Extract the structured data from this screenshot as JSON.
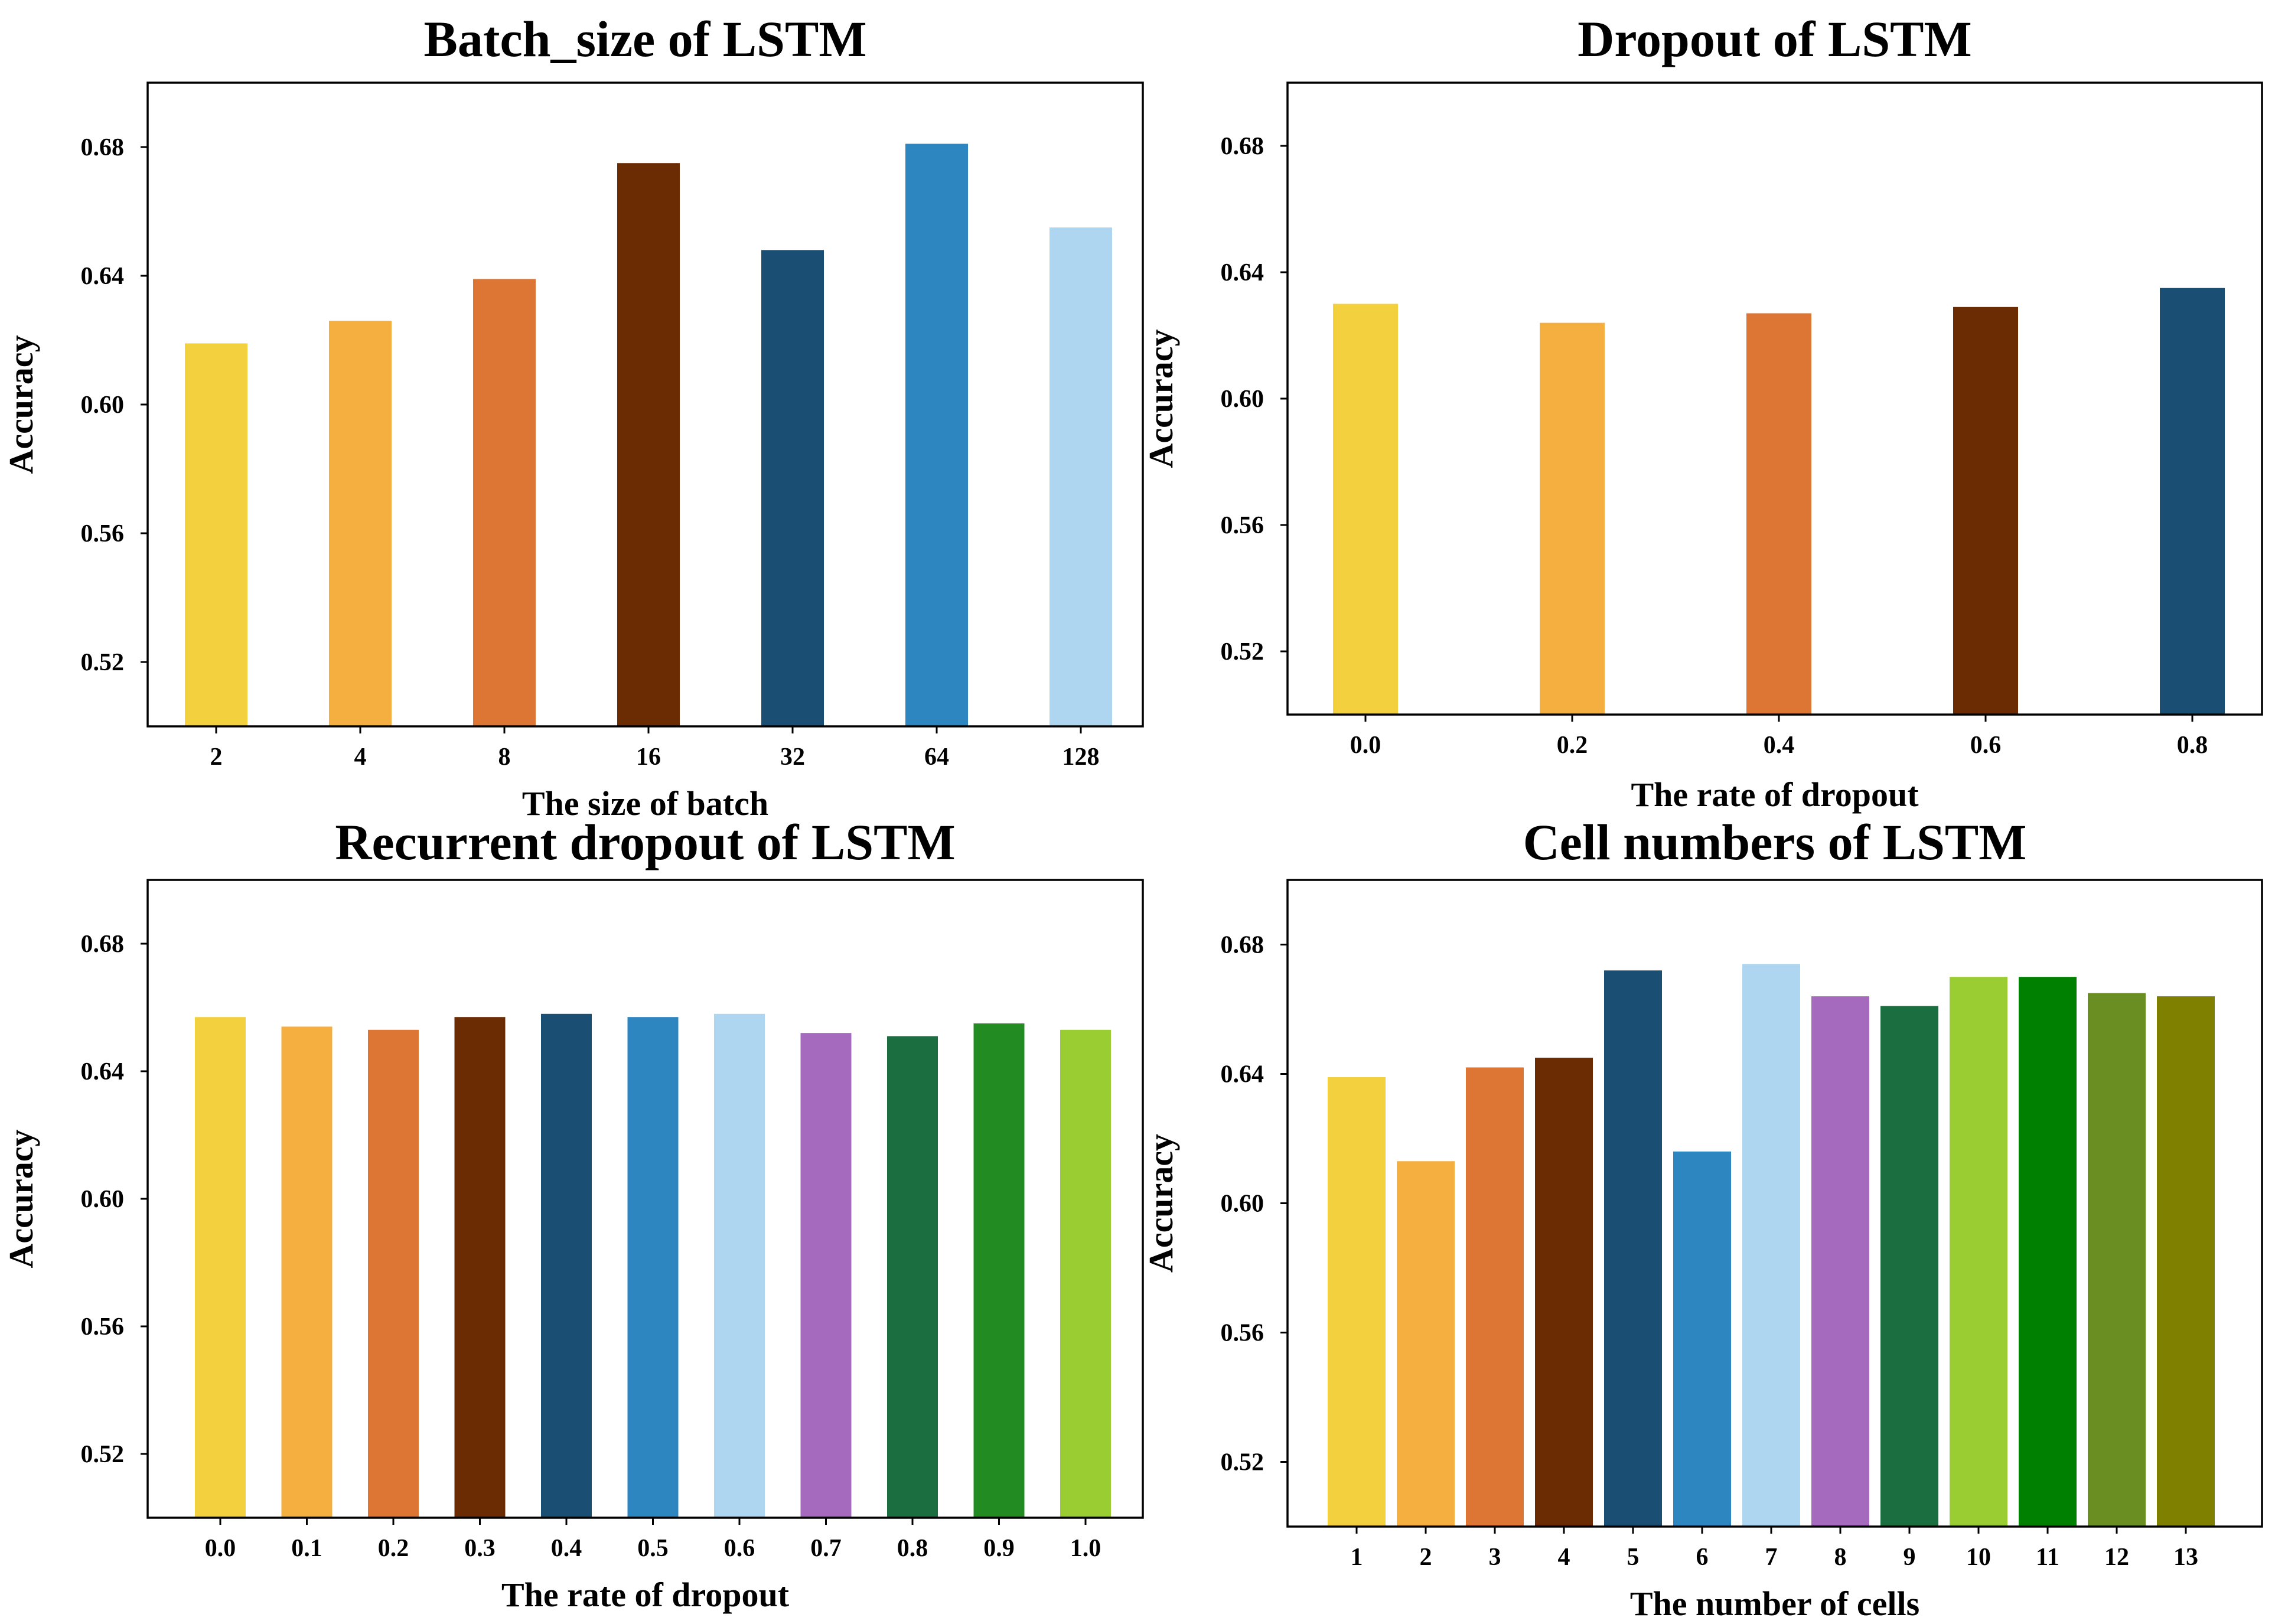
{
  "chart_data": [
    {
      "type": "bar",
      "title": "Batch_size of LSTM",
      "xlabel": "The size of batch",
      "ylabel": "Accuracy",
      "ylim": [
        0.5,
        0.7
      ],
      "yticks": [
        "0.52",
        "0.56",
        "0.60",
        "0.64",
        "0.68"
      ],
      "grid": false,
      "categories": [
        "2",
        "4",
        "8",
        "16",
        "32",
        "64",
        "128"
      ],
      "values": [
        0.619,
        0.626,
        0.639,
        0.675,
        0.648,
        0.681,
        0.655
      ],
      "colors": [
        "#F3D03E",
        "#F5AE40",
        "#DD7534",
        "#6B2C03",
        "#1B4E73",
        "#2E86C1",
        "#AED6F1"
      ]
    },
    {
      "type": "bar",
      "title": "Dropout of LSTM",
      "xlabel": "The rate of dropout",
      "ylabel": "Accuracy",
      "ylim": [
        0.5,
        0.7
      ],
      "yticks": [
        "0.52",
        "0.56",
        "0.60",
        "0.64",
        "0.68"
      ],
      "grid": false,
      "categories": [
        "0.0",
        "0.2",
        "0.4",
        "0.6",
        "0.8"
      ],
      "values": [
        0.63,
        0.624,
        0.627,
        0.629,
        0.635
      ],
      "colors": [
        "#F3D03E",
        "#F5AE40",
        "#DD7534",
        "#6B2C03",
        "#1B4E73"
      ]
    },
    {
      "type": "bar",
      "title": "Recurrent dropout of LSTM",
      "xlabel": "The rate of dropout",
      "ylabel": "Accuracy",
      "ylim": [
        0.5,
        0.7
      ],
      "yticks": [
        "0.52",
        "0.56",
        "0.60",
        "0.64",
        "0.68"
      ],
      "grid": false,
      "categories": [
        "0.0",
        "0.1",
        "0.2",
        "0.3",
        "0.4",
        "0.5",
        "0.6",
        "0.7",
        "0.8",
        "0.9",
        "1.0"
      ],
      "values": [
        0.657,
        0.654,
        0.653,
        0.657,
        0.658,
        0.657,
        0.658,
        0.652,
        0.651,
        0.655,
        0.653
      ],
      "colors": [
        "#F3D03E",
        "#F5AE40",
        "#DD7534",
        "#6B2C03",
        "#1B4E73",
        "#2E86C1",
        "#AED6F1",
        "#A569BD",
        "#1A6E3F",
        "#228B22",
        "#9ACD32"
      ]
    },
    {
      "type": "bar",
      "title": "Cell numbers of LSTM",
      "xlabel": "The number of cells",
      "ylabel": "Accuracy",
      "ylim": [
        0.5,
        0.7
      ],
      "yticks": [
        "0.52",
        "0.56",
        "0.60",
        "0.64",
        "0.68"
      ],
      "grid": false,
      "categories": [
        "1",
        "2",
        "3",
        "4",
        "5",
        "6",
        "7",
        "8",
        "9",
        "10",
        "11",
        "12",
        "13"
      ],
      "values": [
        0.639,
        0.613,
        0.642,
        0.645,
        0.672,
        0.616,
        0.674,
        0.664,
        0.661,
        0.67,
        0.67,
        0.665,
        0.664
      ],
      "colors": [
        "#F3D03E",
        "#F5AE40",
        "#DD7534",
        "#6B2C03",
        "#1B4E73",
        "#2E86C1",
        "#AED6F1",
        "#A569BD",
        "#1A6E3F",
        "#9ACD32",
        "#008000",
        "#6B8E23",
        "#808000"
      ]
    }
  ]
}
